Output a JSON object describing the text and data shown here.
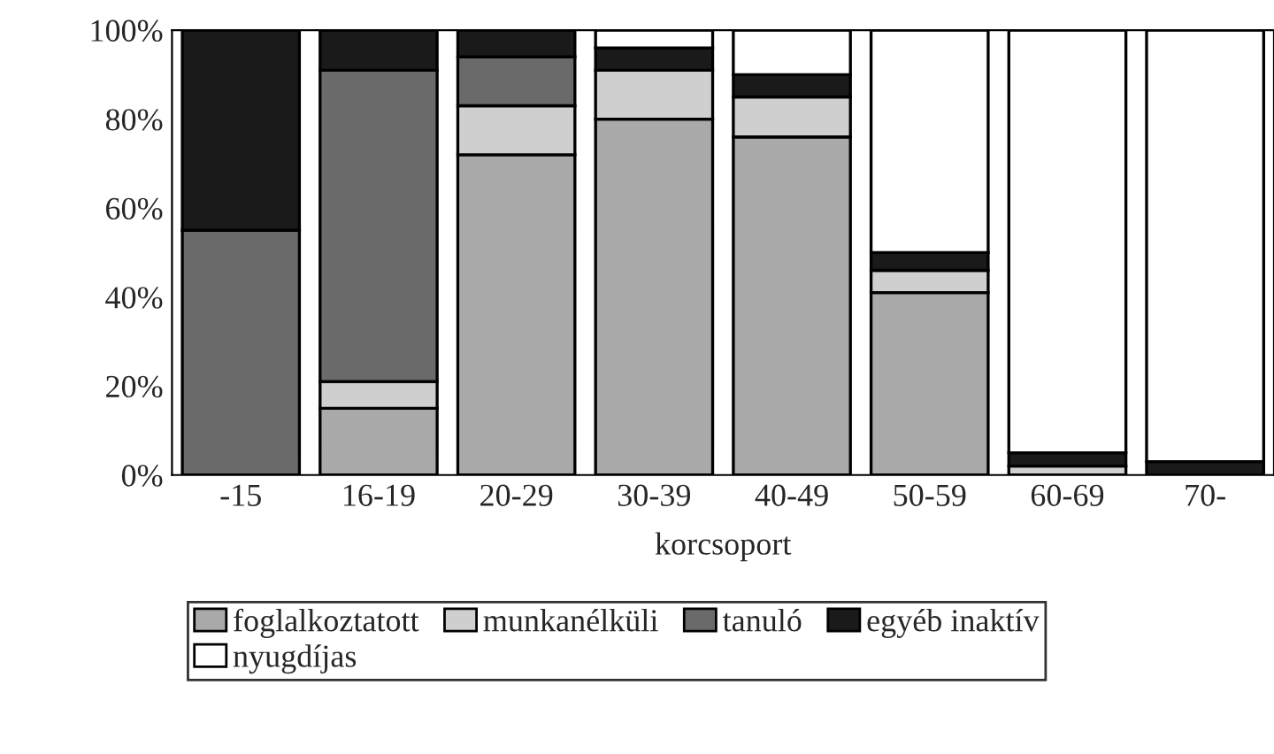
{
  "chart_data": {
    "type": "bar",
    "stacked": true,
    "xlabel": "korcsoport",
    "categories": [
      "-15",
      "16-19",
      "20-29",
      "30-39",
      "40-49",
      "50-59",
      "60-69",
      "70-"
    ],
    "series": [
      {
        "name": "foglalkoztatott",
        "color": "#a9a9a9",
        "values": [
          0,
          15,
          72,
          80,
          76,
          41,
          0,
          0
        ]
      },
      {
        "name": "munkanélküli",
        "color": "#cfcfcf",
        "values": [
          0,
          6,
          11,
          11,
          9,
          5,
          2,
          0
        ]
      },
      {
        "name": "tanuló",
        "color": "#6a6a6a",
        "values": [
          55,
          70,
          11,
          0,
          0,
          0,
          0,
          0
        ]
      },
      {
        "name": "egyéb inaktív",
        "color": "#1a1a1a",
        "values": [
          45,
          9,
          6,
          5,
          5,
          4,
          3,
          3
        ]
      },
      {
        "name": "nyugdíjas",
        "color": "#ffffff",
        "values": [
          0,
          0,
          0,
          4,
          10,
          50,
          95,
          97
        ]
      }
    ],
    "ylim": [
      0,
      100
    ],
    "yticks": [
      {
        "value": 0,
        "label": "0%"
      },
      {
        "value": 20,
        "label": "20%"
      },
      {
        "value": 40,
        "label": "40%"
      },
      {
        "value": 60,
        "label": "60%"
      },
      {
        "value": 80,
        "label": "80%"
      },
      {
        "value": 100,
        "label": "100%"
      }
    ],
    "grid": false,
    "legend": "bottom"
  }
}
